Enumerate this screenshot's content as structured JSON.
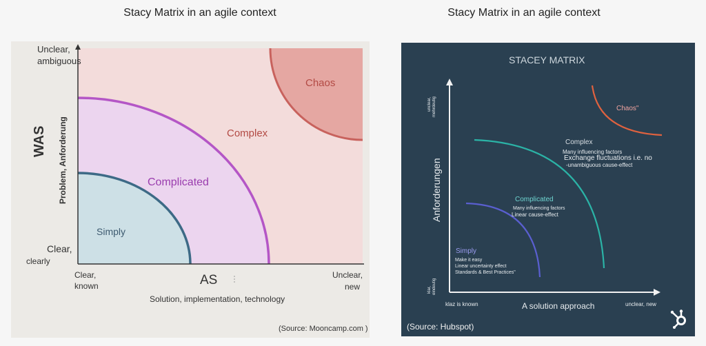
{
  "left": {
    "title": "Stacy Matrix in an agile context",
    "y_top": "Unclear,",
    "y_top2": "ambiguous",
    "y_bottom": "Clear,",
    "y_bottom2": "clearly",
    "y_axis_big": "WAS",
    "y_axis_small": "Problem, Anforderung",
    "x_left": "Clear,",
    "x_left2": "known",
    "x_axis_big": "AS",
    "x_right": "Unclear,",
    "x_right2": "new",
    "x_axis_small": "Solution, implementation, technology",
    "zones": {
      "simply": "Simply",
      "complicated": "Complicated",
      "complex": "Complex",
      "chaos": "Chaos"
    },
    "source": "(Source: Mooncamp.com )",
    "colors": {
      "simply_fill": "#cde0e6",
      "simply_stroke": "#3d6a86",
      "complicated_fill": "#ecd5ef",
      "complicated_stroke": "#b456c6",
      "complex_fill": "#f3dcdb",
      "chaos_fill": "#e5a7a2",
      "chaos_stroke": "#c8625d"
    }
  },
  "right": {
    "title": "Stacy Matrix in an agile context",
    "heading": "STACEY MATRIX",
    "y_top": "unclear,",
    "y_top2": "mehrdeutig",
    "y_axis": "Anforderungen",
    "y_bottom": "klar,",
    "y_bottom2": "eindeutig",
    "x_left": "klaz is known",
    "x_axis": "A solution approach",
    "x_right": "unclear, new",
    "zones": {
      "chaos": "Chaos\"",
      "complex": "Complex",
      "complex_d1": "Many influencing factors",
      "complex_d2": "Exchange fluctuations i.e. no",
      "complex_d3": "-unambiguous cause-effect",
      "complicated": "Complicated",
      "complicated_d1": "Many influencing factors",
      "complicated_d2": "Linear cause-effect",
      "simply": "Simply",
      "simply_d1": "Make it easy",
      "simply_d2": "Linear uncertainty effect",
      "simply_d3": "Standards & Best Practices\""
    },
    "source": "(Source: Hubspot)",
    "logo_icon": "hubspot-logo-icon",
    "colors": {
      "bg": "#2a4051",
      "chaos": "#e0623f",
      "complex": "#2bb3a6",
      "complicated": "#5a5fd0",
      "simply_label": "#9b9cf0",
      "complicated_label": "#6fd6d2",
      "chaos_label": "#f1a4a0"
    }
  }
}
